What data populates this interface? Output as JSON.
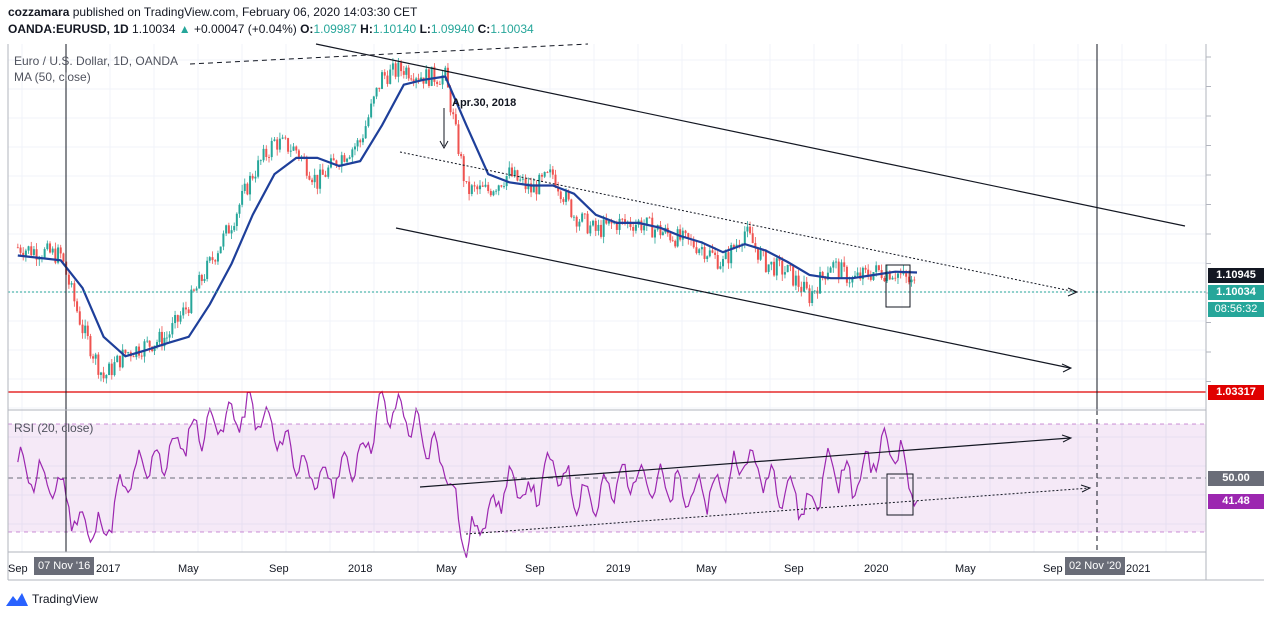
{
  "header": {
    "author": "cozzamara",
    "published_text": "published on TradingView.com, February 06, 2020 14:03:30 CET",
    "symbol": "OANDA:EURUSD, 1D",
    "last": "1.10034",
    "change": "+0.00047 (+0.04%)",
    "open_label": "O:",
    "open": "1.09987",
    "high_label": "H:",
    "high": "1.10140",
    "low_label": "L:",
    "low": "1.09940",
    "close_label": "C:",
    "close": "1.10034"
  },
  "legend": {
    "series_title": "Euro / U.S. Dollar, 1D, OANDA",
    "ma_title": "MA (50, close)",
    "rsi_title": "RSI (20, close)"
  },
  "annotation": "Apr.30, 2018",
  "price_badges": {
    "ma_value": "1.10945",
    "last_price": "1.10034",
    "countdown": "08:56:32",
    "support_level": "1.03317",
    "rsi_mid": "50.00",
    "rsi_value": "41.48"
  },
  "colors": {
    "ma": "#1e3f9a",
    "up": "#26a69a",
    "down": "#ef5350",
    "rsi": "#9c27b0",
    "support": "#e00000",
    "badge_dark": "#131722",
    "badge_green": "#26a69a"
  },
  "x_axis": {
    "labels": [
      "Sep",
      "2017",
      "May",
      "Sep",
      "2018",
      "May",
      "Sep",
      "2019",
      "May",
      "Sep",
      "2020",
      "May",
      "Sep",
      "2021"
    ],
    "crosshair_left": "07 Nov '16",
    "crosshair_right": "02 Nov '20"
  },
  "footer": {
    "brand": "TradingView",
    "logo_icon": "tradingview-logo-icon"
  },
  "chart_data": {
    "type": "line",
    "title": "Euro / U.S. Dollar, 1D, OANDA",
    "x_range": [
      "2016-08",
      "2021-04"
    ],
    "series": [
      {
        "name": "Euro / U.S. Dollar, 1D, OANDA",
        "x": [
          "2016-08",
          "2016-10",
          "2016-11",
          "2016-12",
          "2017-01",
          "2017-02",
          "2017-03",
          "2017-04",
          "2017-05",
          "2017-06",
          "2017-07",
          "2017-08",
          "2017-09",
          "2017-10",
          "2017-11",
          "2017-12",
          "2018-01",
          "2018-02",
          "2018-03",
          "2018-04",
          "2018-05",
          "2018-06",
          "2018-07",
          "2018-08",
          "2018-09",
          "2018-10",
          "2018-11",
          "2018-12",
          "2019-01",
          "2019-02",
          "2019-03",
          "2019-04",
          "2019-05",
          "2019-06",
          "2019-07",
          "2019-08",
          "2019-09",
          "2019-10",
          "2019-11",
          "2019-12",
          "2020-01",
          "2020-02"
        ],
        "values": [
          1.125,
          1.12,
          1.075,
          1.045,
          1.06,
          1.065,
          1.07,
          1.09,
          1.115,
          1.14,
          1.17,
          1.19,
          1.185,
          1.165,
          1.18,
          1.19,
          1.23,
          1.235,
          1.23,
          1.23,
          1.16,
          1.16,
          1.17,
          1.16,
          1.17,
          1.145,
          1.135,
          1.14,
          1.14,
          1.135,
          1.13,
          1.125,
          1.115,
          1.135,
          1.115,
          1.11,
          1.095,
          1.115,
          1.105,
          1.11,
          1.11,
          1.1003
        ]
      },
      {
        "name": "MA (50, close)",
        "x": [
          "2016-08",
          "2016-10",
          "2016-11",
          "2016-12",
          "2017-01",
          "2017-02",
          "2017-03",
          "2017-04",
          "2017-05",
          "2017-06",
          "2017-07",
          "2017-08",
          "2017-09",
          "2017-10",
          "2017-11",
          "2017-12",
          "2018-01",
          "2018-02",
          "2018-03",
          "2018-04",
          "2018-05",
          "2018-06",
          "2018-07",
          "2018-08",
          "2018-09",
          "2018-10",
          "2018-11",
          "2018-12",
          "2019-01",
          "2019-02",
          "2019-03",
          "2019-04",
          "2019-05",
          "2019-06",
          "2019-07",
          "2019-08",
          "2019-09",
          "2019-10",
          "2019-11",
          "2019-12",
          "2020-01",
          "2020-02"
        ],
        "values": [
          1.12,
          1.117,
          1.1,
          1.07,
          1.058,
          1.062,
          1.066,
          1.07,
          1.09,
          1.115,
          1.145,
          1.17,
          1.18,
          1.18,
          1.175,
          1.178,
          1.2,
          1.225,
          1.228,
          1.23,
          1.2,
          1.17,
          1.165,
          1.163,
          1.163,
          1.158,
          1.145,
          1.14,
          1.14,
          1.137,
          1.132,
          1.128,
          1.122,
          1.127,
          1.123,
          1.116,
          1.108,
          1.106,
          1.106,
          1.108,
          1.11,
          1.1095
        ]
      },
      {
        "name": "RSI (20, close)",
        "x": [
          "2016-08",
          "2016-10",
          "2016-11",
          "2016-12",
          "2017-01",
          "2017-02",
          "2017-03",
          "2017-04",
          "2017-05",
          "2017-06",
          "2017-07",
          "2017-08",
          "2017-09",
          "2017-10",
          "2017-11",
          "2017-12",
          "2018-01",
          "2018-02",
          "2018-03",
          "2018-04",
          "2018-05",
          "2018-06",
          "2018-07",
          "2018-08",
          "2018-09",
          "2018-10",
          "2018-11",
          "2018-12",
          "2019-01",
          "2019-02",
          "2019-03",
          "2019-04",
          "2019-05",
          "2019-06",
          "2019-07",
          "2019-08",
          "2019-09",
          "2019-10",
          "2019-11",
          "2019-12",
          "2020-01",
          "2020-02"
        ],
        "values": [
          55,
          45,
          32,
          30,
          48,
          55,
          58,
          66,
          70,
          72,
          75,
          67,
          58,
          48,
          52,
          58,
          76,
          74,
          64,
          56,
          24,
          38,
          48,
          43,
          55,
          45,
          42,
          48,
          52,
          47,
          45,
          44,
          47,
          58,
          50,
          46,
          38,
          56,
          47,
          58,
          63,
          41.48
        ]
      }
    ],
    "horizontal_levels": [
      {
        "value": 1.03317
      }
    ],
    "rsi_band": [
      30,
      70
    ],
    "rsi_mid": 50,
    "y_range": [
      1.025,
      1.25
    ],
    "grid": true,
    "legend": "top-left"
  }
}
